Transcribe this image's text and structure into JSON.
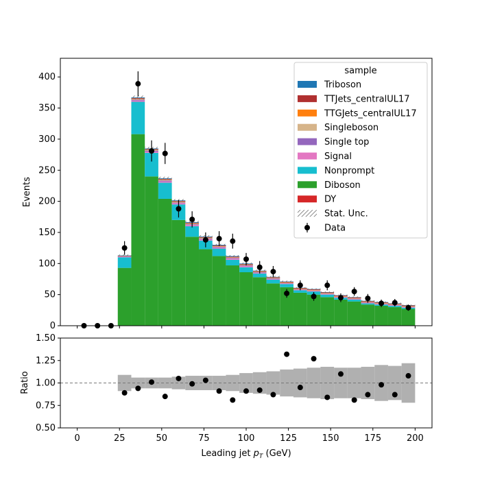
{
  "chart_data": [
    {
      "type": "bar",
      "stacked": true,
      "ylabel": "Events",
      "xlim": [
        -10,
        210
      ],
      "ylim": [
        0,
        430
      ],
      "y_ticks": [
        0,
        50,
        100,
        150,
        200,
        250,
        300,
        350,
        400
      ],
      "bin_edges": [
        24,
        32,
        40,
        48,
        56,
        64,
        72,
        80,
        88,
        96,
        104,
        112,
        120,
        128,
        136,
        144,
        152,
        160,
        168,
        176,
        184,
        192,
        200
      ],
      "series": [
        {
          "name": "DY",
          "color": "#d62728",
          "values": [
            0,
            0,
            0,
            0,
            0,
            0,
            0,
            0,
            0,
            0,
            0,
            0,
            0,
            0,
            0,
            0,
            0,
            0,
            0,
            0,
            0,
            0
          ]
        },
        {
          "name": "Diboson",
          "color": "#2ca02c",
          "values": [
            93,
            308,
            240,
            204,
            170,
            143,
            123,
            112,
            97,
            86,
            78,
            68,
            62,
            53,
            50,
            46,
            42,
            39,
            34,
            32,
            30,
            27
          ]
        },
        {
          "name": "Nonprompt",
          "color": "#17becf",
          "values": [
            17,
            52,
            38,
            26,
            25,
            17,
            14,
            12,
            9,
            8,
            6,
            6,
            5,
            4,
            5,
            4,
            3,
            3,
            2,
            2,
            2,
            2
          ]
        },
        {
          "name": "Signal",
          "color": "#e377c2",
          "values": [
            1,
            2,
            2,
            2,
            2,
            2,
            2,
            2,
            2,
            2,
            1,
            1,
            1,
            1,
            1,
            1,
            1,
            1,
            1,
            1,
            1,
            1
          ]
        },
        {
          "name": "Single top",
          "color": "#9467bd",
          "values": [
            0.5,
            1.5,
            1.5,
            1.5,
            1,
            1,
            1,
            1,
            1,
            1,
            1,
            1,
            0.5,
            0.5,
            0.5,
            0.5,
            0.5,
            0.5,
            0.5,
            0.5,
            0.5,
            0.5
          ]
        },
        {
          "name": "Singleboson",
          "color": "#d6b48a",
          "values": [
            0.5,
            1,
            1,
            1,
            1,
            1,
            1,
            0.5,
            0.5,
            0.5,
            0.5,
            0.5,
            0.5,
            0.5,
            0.5,
            0.5,
            0.5,
            0.5,
            0.5,
            0.5,
            0.5,
            0.5
          ]
        },
        {
          "name": "TTGJets_centralUL17",
          "color": "#ff7f0e",
          "values": [
            0,
            0.5,
            0.5,
            0.5,
            0.5,
            0.5,
            0.5,
            0.5,
            0.5,
            0.5,
            0.5,
            0.5,
            0.5,
            0.5,
            0.5,
            0.5,
            0.5,
            0.5,
            0.5,
            0.5,
            0.5,
            0.5
          ]
        },
        {
          "name": "TTJets_centralUL17",
          "color": "#b03030",
          "values": [
            0.5,
            1,
            1,
            1,
            1,
            1,
            1,
            1,
            1,
            1,
            1,
            1,
            1,
            1,
            1,
            1,
            1,
            1,
            1,
            1,
            1,
            1
          ]
        },
        {
          "name": "Triboson",
          "color": "#1f77b4",
          "values": [
            0.5,
            1,
            1,
            1,
            1,
            1,
            1,
            1,
            1,
            1,
            0.5,
            0.5,
            0.5,
            0.5,
            0.5,
            0.5,
            0.5,
            0.5,
            0.5,
            0.5,
            0.5,
            0.5
          ]
        }
      ],
      "stat_unc_label": "Stat. Unc.",
      "stat_unc_halfwidth": [
        1.5,
        3,
        2.5,
        2.5,
        2,
        2,
        2,
        1.5,
        1.5,
        1.5,
        1.5,
        1.5,
        1.5,
        1,
        1,
        1,
        1,
        1,
        1,
        1,
        1,
        1
      ],
      "data": {
        "name": "Data",
        "x": [
          4,
          12,
          20,
          28,
          36,
          44,
          52,
          60,
          68,
          76,
          84,
          92,
          100,
          108,
          116,
          124,
          132,
          140,
          148,
          156,
          164,
          172,
          180,
          188,
          196
        ],
        "y": [
          0,
          0,
          0,
          125,
          389,
          281,
          277,
          188,
          171,
          138,
          140,
          136,
          107,
          94,
          87,
          52,
          65,
          47,
          65,
          45,
          55,
          44,
          36,
          37,
          29
        ],
        "yerr": [
          0,
          0,
          0,
          11,
          20,
          17,
          17,
          14,
          13,
          12,
          12,
          12,
          10,
          10,
          9,
          7,
          8,
          7,
          8,
          7,
          7,
          7,
          6,
          6,
          5
        ]
      },
      "legend": {
        "title": "sample",
        "placement": "top-right"
      }
    },
    {
      "type": "scatter",
      "xlabel": "Leading jet  p_T (GeV)",
      "ylabel": "Ratio",
      "xlim": [
        -10,
        210
      ],
      "ylim": [
        0.5,
        1.5
      ],
      "x_ticks": [
        0,
        25,
        50,
        75,
        100,
        125,
        150,
        175,
        200
      ],
      "y_ticks": [
        0.5,
        0.75,
        1.0,
        1.25,
        1.5
      ],
      "y_tick_labels": [
        "0.50",
        "0.75",
        "1.00",
        "1.25",
        "1.50"
      ],
      "reference_line": 1.0,
      "unc_band": [
        0.09,
        0.06,
        0.06,
        0.06,
        0.07,
        0.08,
        0.08,
        0.08,
        0.09,
        0.11,
        0.12,
        0.13,
        0.15,
        0.16,
        0.17,
        0.18,
        0.17,
        0.17,
        0.18,
        0.2,
        0.19,
        0.22
      ],
      "x": [
        28,
        36,
        44,
        52,
        60,
        68,
        76,
        84,
        92,
        100,
        108,
        116,
        124,
        132,
        140,
        148,
        156,
        164,
        172,
        180,
        188,
        196
      ],
      "y": [
        0.89,
        0.94,
        1.01,
        0.85,
        1.05,
        0.99,
        1.03,
        0.91,
        0.81,
        0.91,
        0.92,
        0.87,
        1.32,
        0.95,
        1.27,
        0.84,
        1.1,
        0.81,
        0.87,
        0.98,
        0.87,
        1.08
      ]
    }
  ]
}
